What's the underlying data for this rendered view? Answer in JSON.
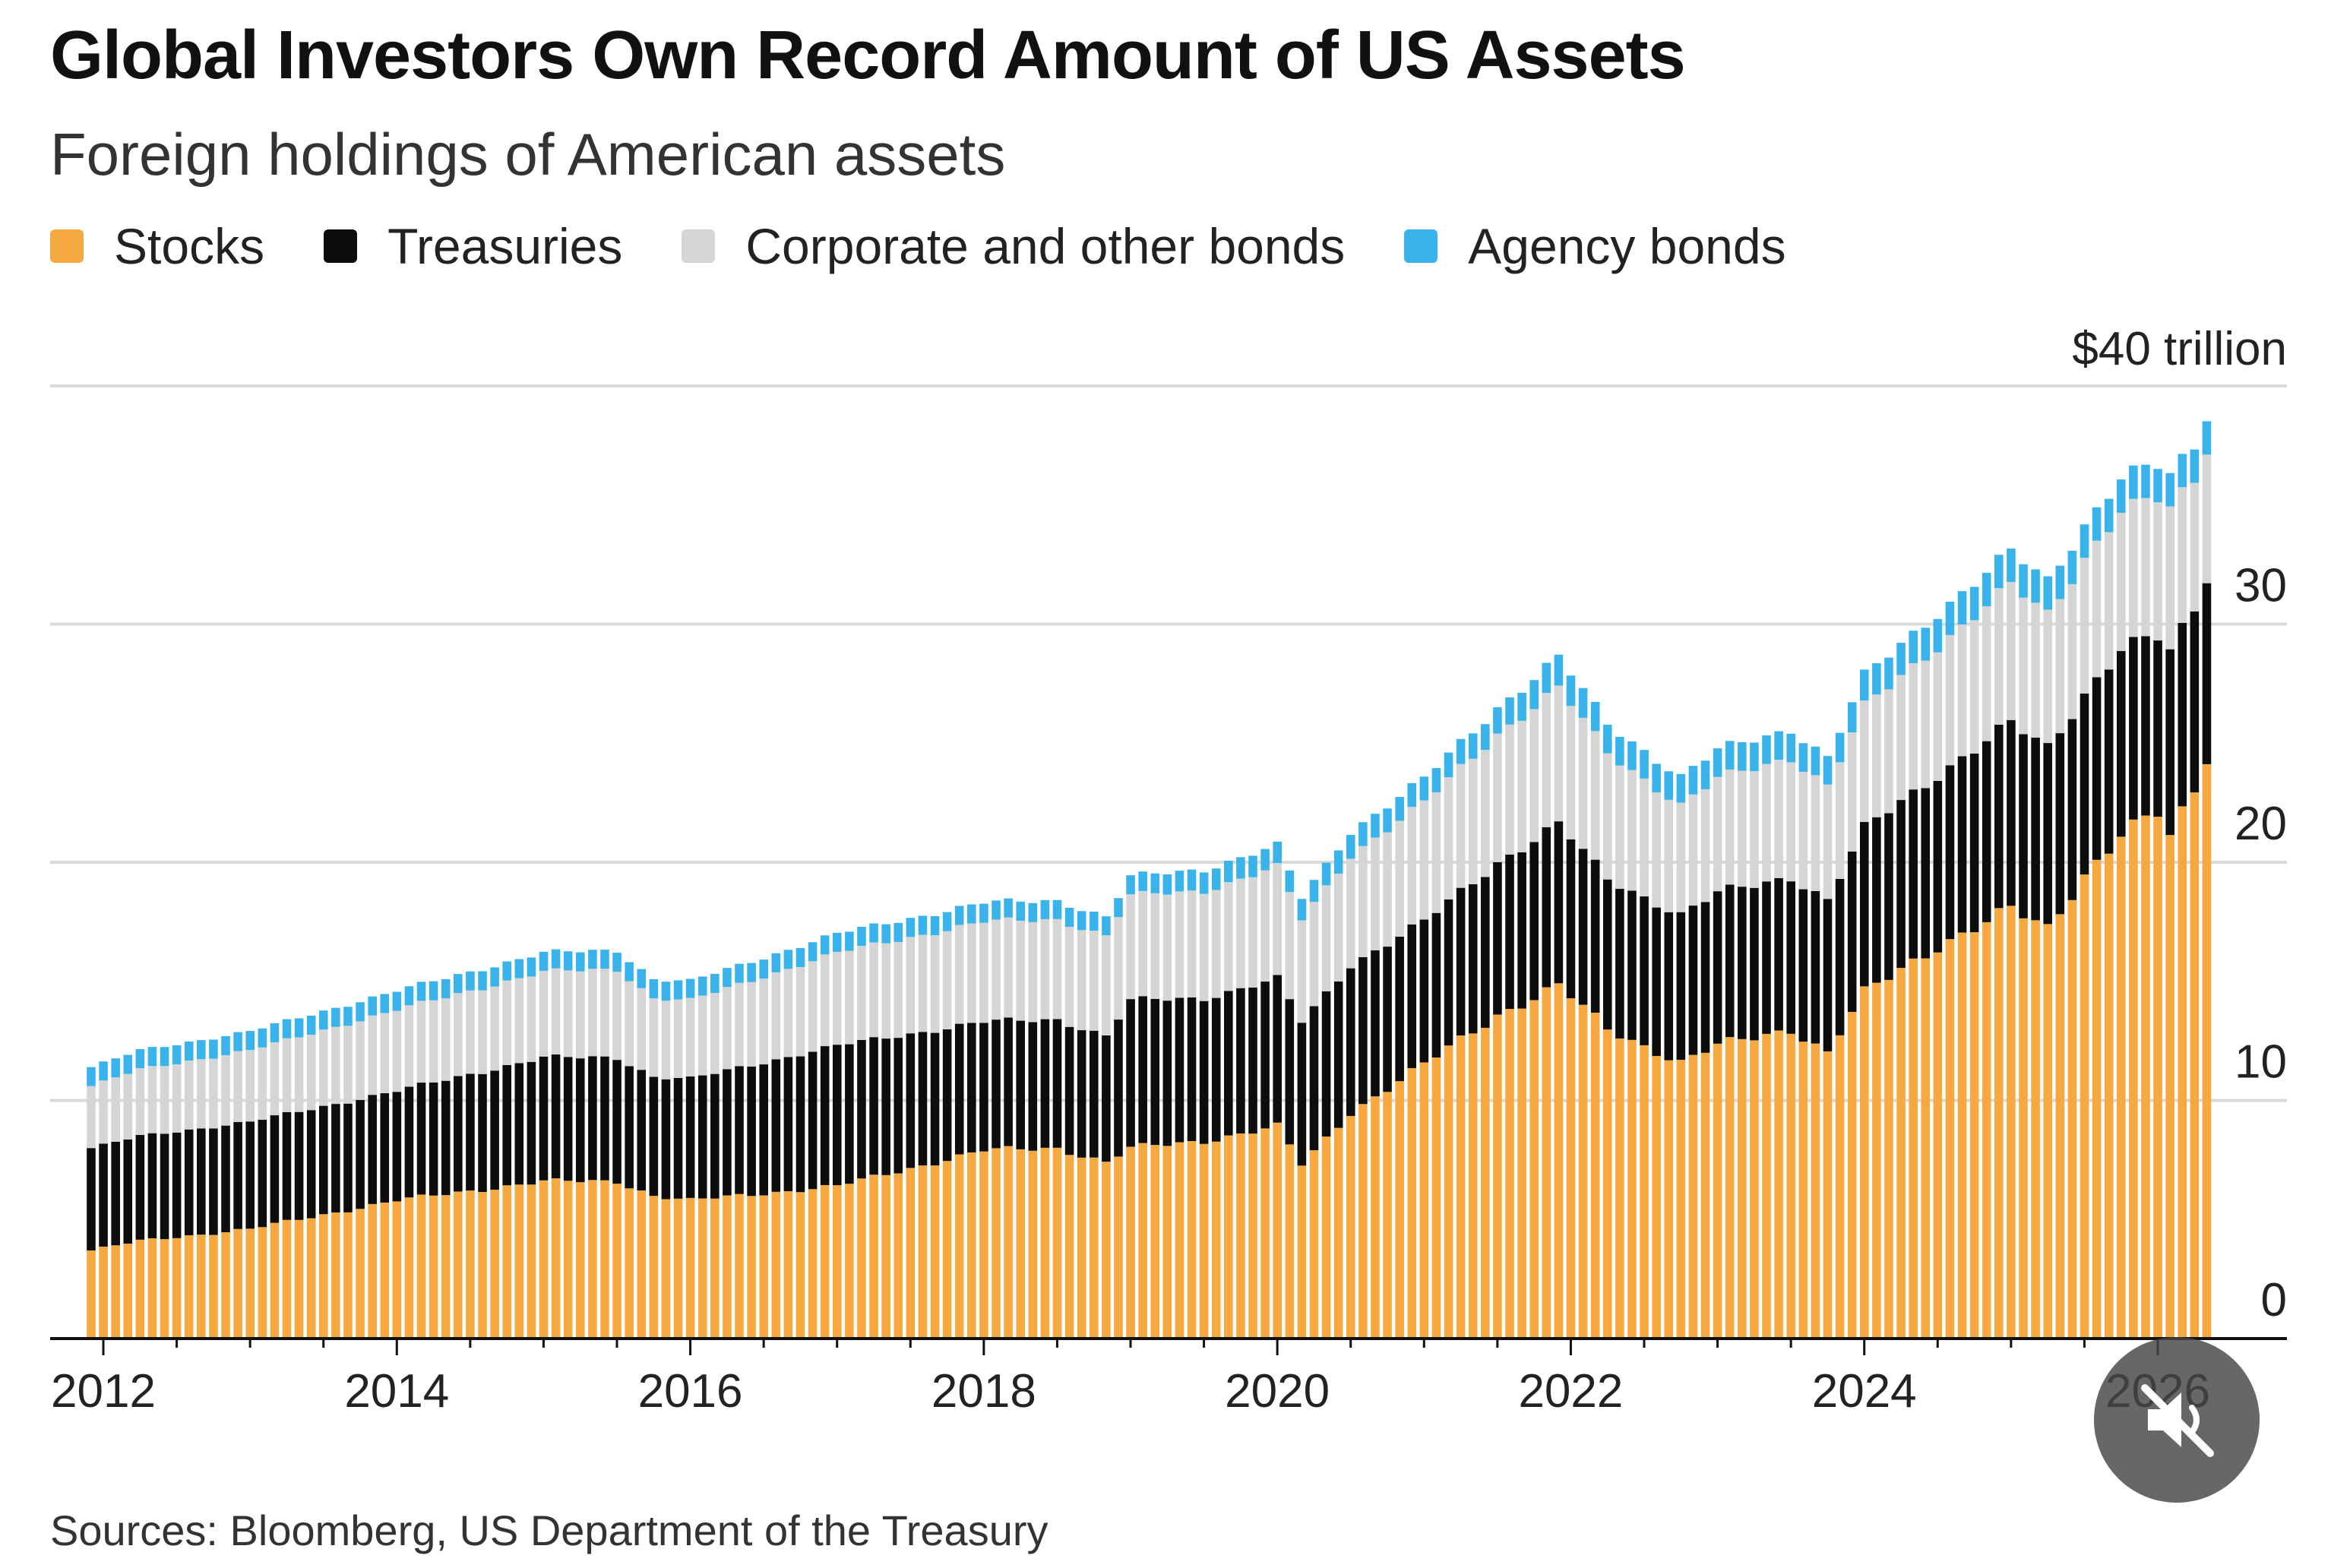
{
  "title": "Global Investors Own Record Amount of US Assets",
  "subtitle": "Foreign holdings of American assets",
  "source": "Sources: Bloomberg, US Department of the Treasury",
  "mute_icon": "muted-speaker-icon",
  "chart_data": {
    "type": "bar",
    "stacked": true,
    "grid": true,
    "legend_position": "top-left",
    "ylim": [
      0,
      40
    ],
    "ylabel": "",
    "xlabel": "",
    "y_ticks": [
      0,
      10,
      20,
      30,
      40
    ],
    "y_tick_labels": [
      "0",
      "10",
      "20",
      "30",
      "$40 trillion"
    ],
    "x_ticks": [
      2012,
      2014,
      2016,
      2018,
      2020,
      2022,
      2024,
      2026
    ],
    "x_tick_labels": [
      "2012",
      "2014",
      "2016",
      "2018",
      "2020",
      "2022",
      "2024",
      "2026"
    ],
    "period": "monthly, 2011-12 to 2025-04",
    "anchors": {
      "x": [
        2011.917,
        2012.25,
        2013.0,
        2014.0,
        2015.0,
        2015.5,
        2015.75,
        2016.0,
        2017.0,
        2018.0,
        2018.5,
        2018.833,
        2019.0,
        2019.5,
        2020.0,
        2020.167,
        2020.5,
        2021.0,
        2021.5,
        2021.917,
        2022.25,
        2022.75,
        2023.0,
        2023.5,
        2023.75,
        2024.0,
        2024.5,
        2025.0,
        2025.25,
        2025.5,
        2025.75,
        2026.0,
        2026.083,
        2026.25,
        2026.333
      ],
      "stocks": [
        3.7,
        4.1,
        4.6,
        5.8,
        6.6,
        6.6,
        6.0,
        5.8,
        6.4,
        7.9,
        8.0,
        7.4,
        8.0,
        8.3,
        8.9,
        7.3,
        9.5,
        11.5,
        13.6,
        14.8,
        13.0,
        11.6,
        12.3,
        13.0,
        12.0,
        14.5,
        16.5,
        18.0,
        17.2,
        19.5,
        21.2,
        22.0,
        21.0,
        23.0,
        24.5
      ],
      "treasuries": [
        4.3,
        4.4,
        4.5,
        4.6,
        5.2,
        5.2,
        5.0,
        5.1,
        5.9,
        5.4,
        5.4,
        5.3,
        6.2,
        6.0,
        6.2,
        6.0,
        6.2,
        6.0,
        6.4,
        6.8,
        6.3,
        6.2,
        6.4,
        6.4,
        6.4,
        6.9,
        7.2,
        7.8,
        7.6,
        7.6,
        7.8,
        7.4,
        7.8,
        7.6,
        7.6
      ],
      "corporate_other": [
        2.6,
        2.8,
        3.0,
        3.4,
        3.6,
        3.7,
        3.3,
        3.3,
        3.9,
        4.2,
        4.2,
        4.2,
        4.4,
        4.5,
        4.7,
        4.3,
        4.6,
        5.0,
        5.4,
        5.7,
        5.3,
        4.6,
        4.8,
        5.0,
        4.8,
        5.1,
        5.4,
        5.8,
        5.6,
        5.7,
        5.8,
        5.8,
        6.0,
        5.4,
        5.4
      ],
      "agency": [
        0.8,
        0.8,
        0.8,
        0.8,
        0.8,
        0.8,
        0.8,
        0.8,
        0.8,
        0.8,
        0.8,
        0.8,
        0.8,
        0.9,
        0.9,
        0.9,
        1.0,
        1.0,
        1.1,
        1.3,
        1.2,
        1.2,
        1.2,
        1.2,
        1.2,
        1.3,
        1.4,
        1.4,
        1.4,
        1.4,
        1.4,
        1.4,
        1.4,
        1.4,
        1.4
      ]
    },
    "series": [
      {
        "key": "stocks",
        "name": "Stocks",
        "color": "#f7a941"
      },
      {
        "key": "treasuries",
        "name": "Treasuries",
        "color": "#0d0d0d"
      },
      {
        "key": "corporate_other",
        "name": "Corporate and other bonds",
        "color": "#d5d5d5"
      },
      {
        "key": "agency",
        "name": "Agency bonds",
        "color": "#3ab3ea"
      }
    ],
    "gridline_color": "#d9d9d9",
    "axis_color": "#111111"
  }
}
